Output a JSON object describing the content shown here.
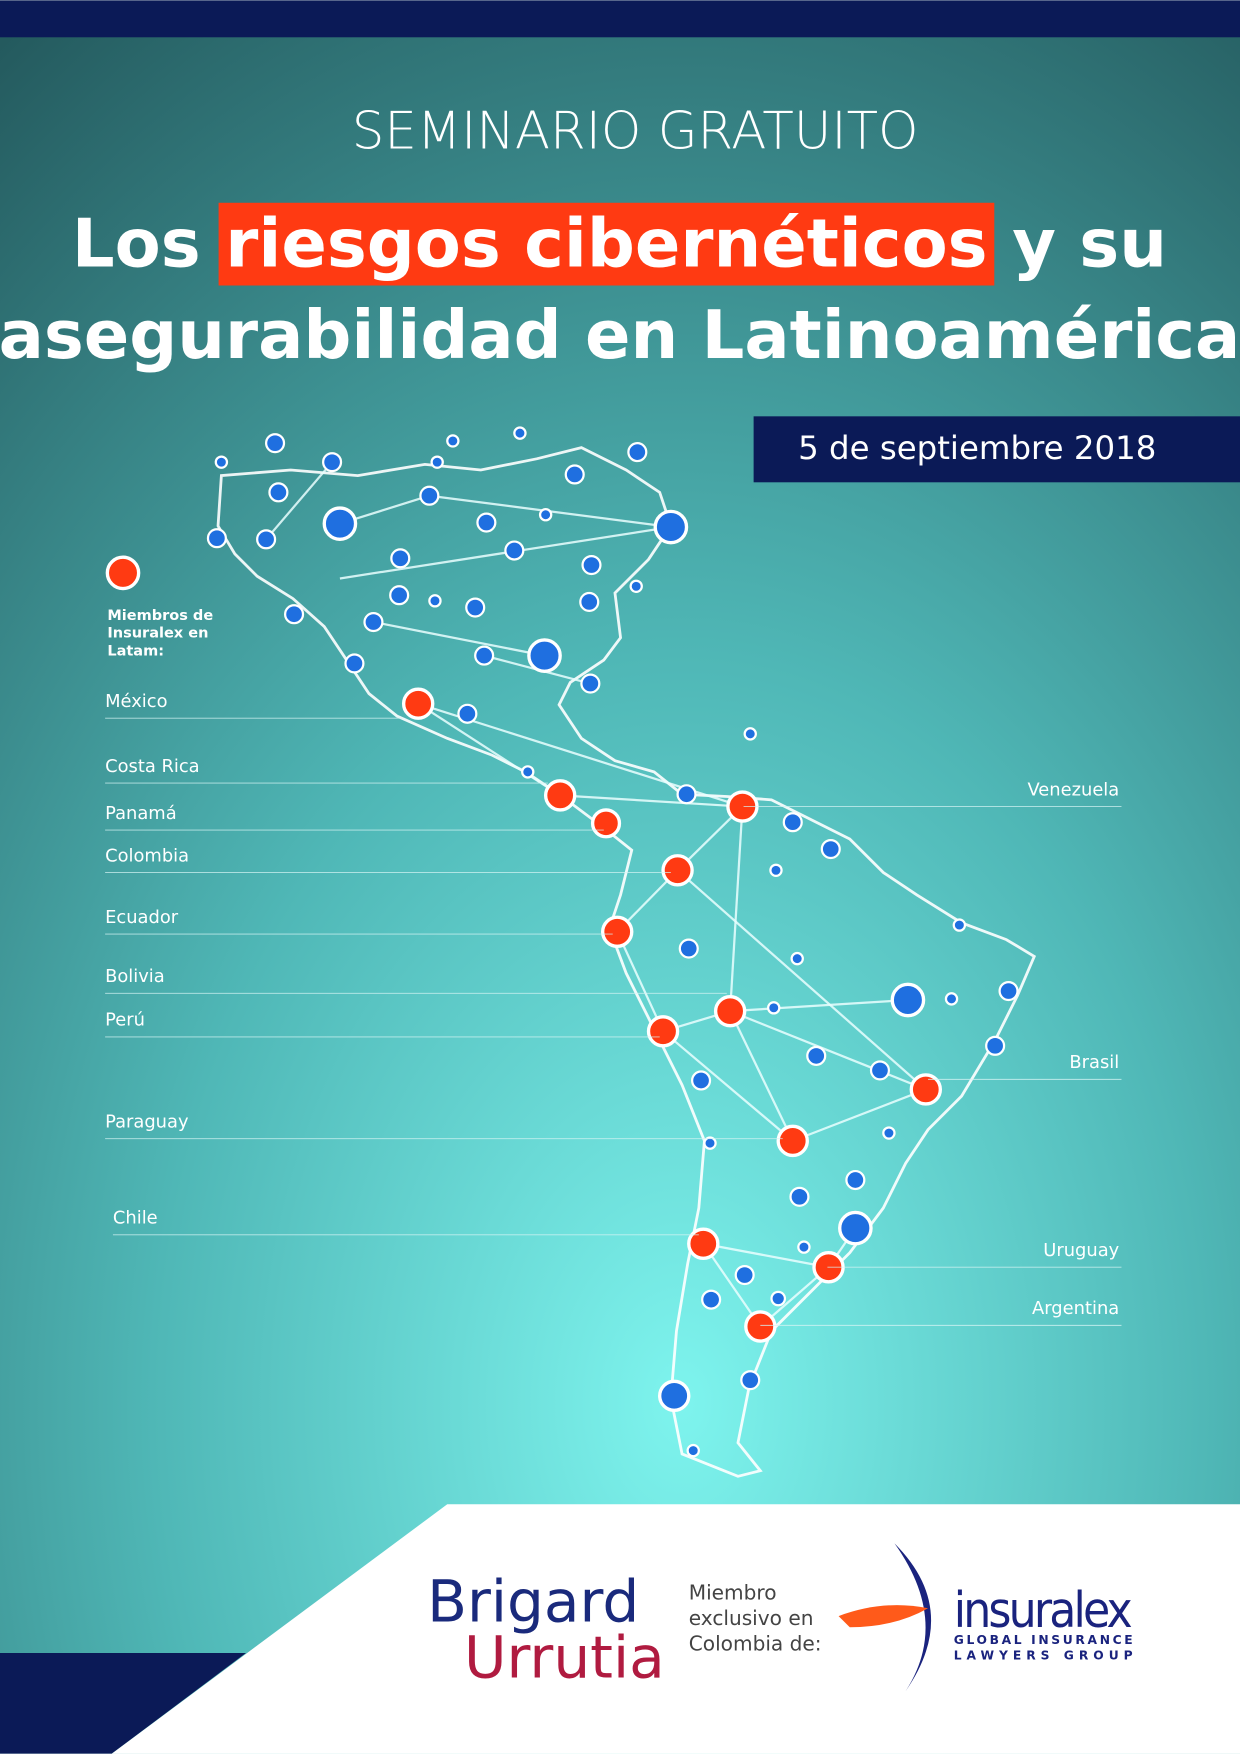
{
  "header": {
    "kicker": "SEMINARIO GRATUITO",
    "title": {
      "before": "Los",
      "highlight": "riesgos cibernéticos",
      "after": "y su",
      "line2": "asegurabilidad en Latinoamérica"
    },
    "date": "5 de septiembre 2018"
  },
  "legend": {
    "label": [
      "Miembros de",
      "Insuralex en",
      "Latam:"
    ]
  },
  "countries": {
    "left": [
      "México",
      "Costa Rica",
      "Panamá",
      "Colombia",
      "Ecuador",
      "Bolivia",
      "Perú",
      "Paraguay",
      "Chile"
    ],
    "right": [
      "Venezuela",
      "Brasil",
      "Uruguay",
      "Argentina"
    ]
  },
  "footer": {
    "brand": [
      "Brigard",
      "Urrutia"
    ],
    "member_text": [
      "Miembro",
      "exclusivo en",
      "Colombia de:"
    ],
    "partner": "insuralex",
    "partner_tagline": [
      "GLOBAL INSURANCE",
      "LAWYERS GROUP"
    ]
  }
}
